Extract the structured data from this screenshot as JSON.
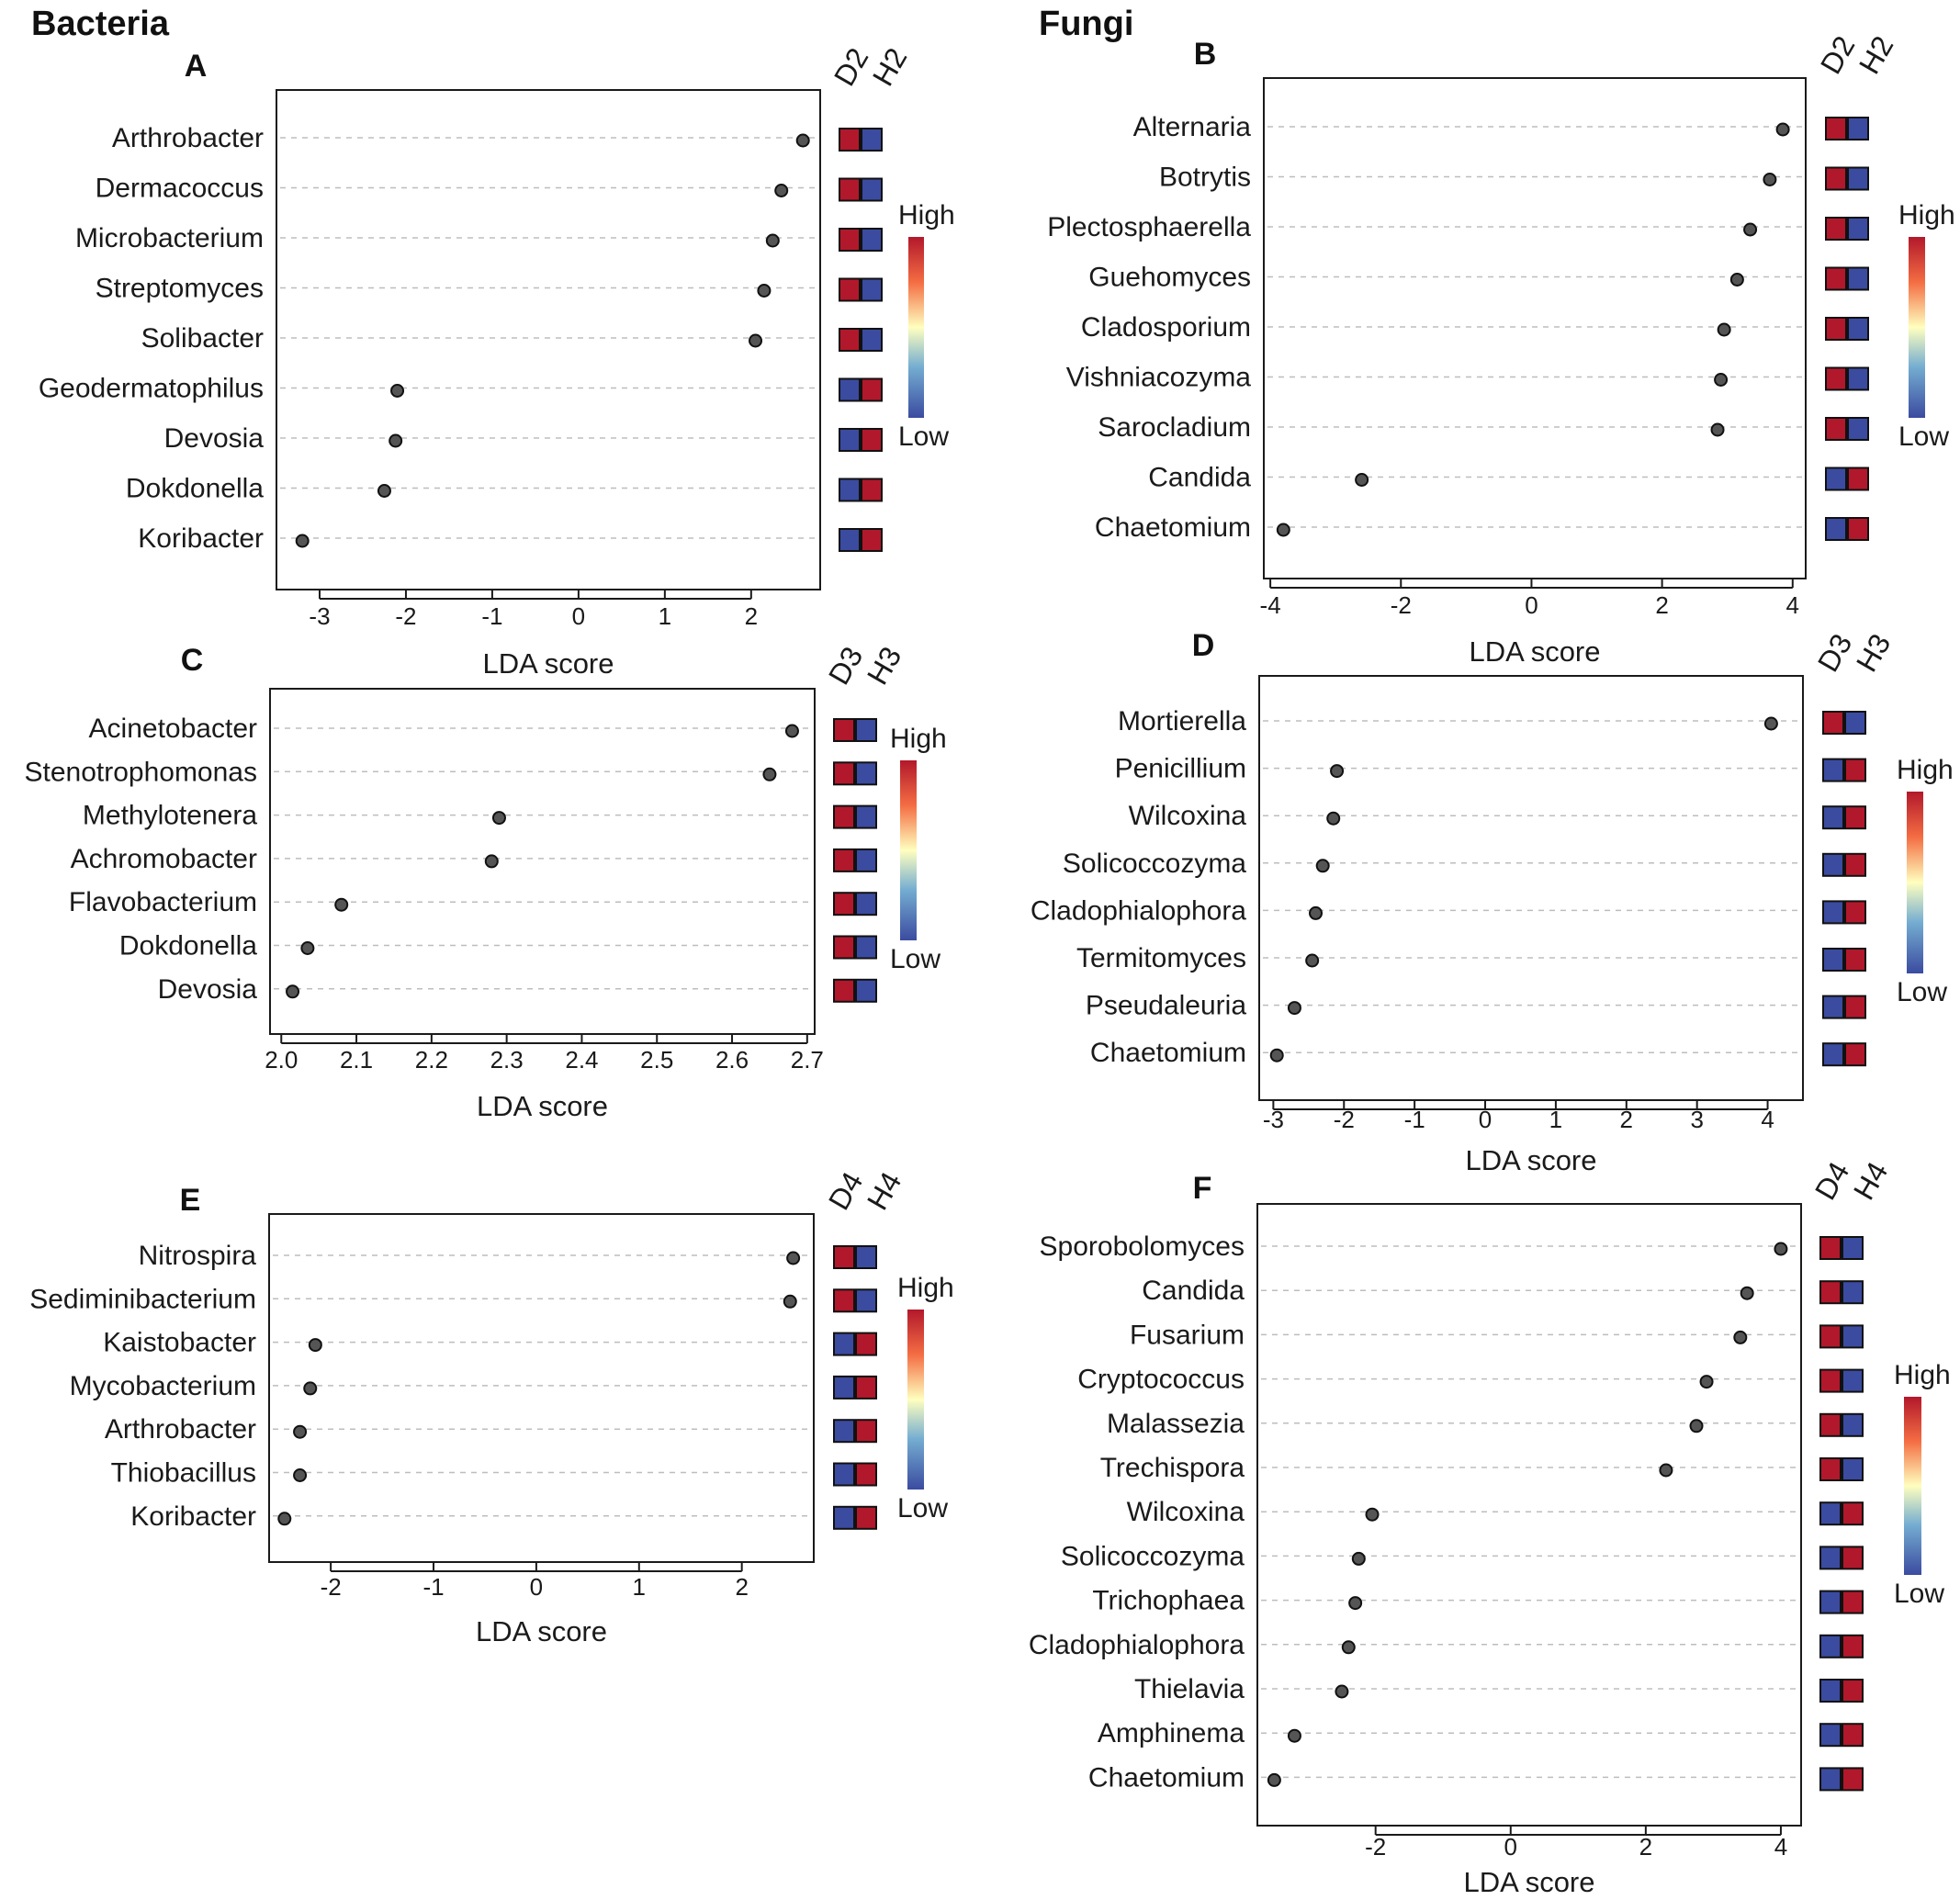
{
  "titles": {
    "left": "Bacteria",
    "right": "Fungi"
  },
  "colors": {
    "high": "#b2182b",
    "low": "#3b4ba0",
    "dot": "#555555",
    "gradient": [
      "#3b4ba0",
      "#74add1",
      "#ffffbf",
      "#f46d43",
      "#b2182b"
    ]
  },
  "chart_data": [
    {
      "id": "A",
      "type": "scatter",
      "title": "A",
      "xlabel": "LDA score",
      "xlim": [
        -3.5,
        2.8
      ],
      "xticks": [
        "-3",
        "-2",
        "-1",
        "0",
        "1",
        "2"
      ],
      "groups": [
        "D2",
        "H2"
      ],
      "legend_high": "High",
      "legend_low": "Low",
      "taxa": [
        {
          "name": "Arthrobacter",
          "value": 2.6
        },
        {
          "name": "Dermacoccus",
          "value": 2.35
        },
        {
          "name": "Microbacterium",
          "value": 2.25
        },
        {
          "name": "Streptomyces",
          "value": 2.15
        },
        {
          "name": "Solibacter",
          "value": 2.05
        },
        {
          "name": "Geodermatophilus",
          "value": -2.1
        },
        {
          "name": "Devosia",
          "value": -2.12
        },
        {
          "name": "Dokdonella",
          "value": -2.25
        },
        {
          "name": "Koribacter",
          "value": -3.2
        }
      ]
    },
    {
      "id": "B",
      "type": "scatter",
      "title": "B",
      "xlabel": "LDA score",
      "xlim": [
        -4.1,
        4.2
      ],
      "xticks": [
        "-4",
        "-2",
        "0",
        "2",
        "4"
      ],
      "groups": [
        "D2",
        "H2"
      ],
      "legend_high": "High",
      "legend_low": "Low",
      "taxa": [
        {
          "name": "Alternaria",
          "value": 3.85
        },
        {
          "name": "Botrytis",
          "value": 3.65
        },
        {
          "name": "Plectosphaerella",
          "value": 3.35
        },
        {
          "name": "Guehomyces",
          "value": 3.15
        },
        {
          "name": "Cladosporium",
          "value": 2.95
        },
        {
          "name": "Vishniacozyma",
          "value": 2.9
        },
        {
          "name": "Sarocladium",
          "value": 2.85
        },
        {
          "name": "Candida",
          "value": -2.6
        },
        {
          "name": "Chaetomium",
          "value": -3.8
        }
      ]
    },
    {
      "id": "C",
      "type": "scatter",
      "title": "C",
      "xlabel": "LDA score",
      "xlim": [
        1.985,
        2.71
      ],
      "xticks": [
        "2.0",
        "2.1",
        "2.2",
        "2.3",
        "2.4",
        "2.5",
        "2.6",
        "2.7"
      ],
      "groups": [
        "D3",
        "H3"
      ],
      "legend_high": "High",
      "legend_low": "Low",
      "taxa": [
        {
          "name": "Acinetobacter",
          "value": 2.68
        },
        {
          "name": "Stenotrophomonas",
          "value": 2.65
        },
        {
          "name": "Methylotenera",
          "value": 2.29
        },
        {
          "name": "Achromobacter",
          "value": 2.28
        },
        {
          "name": "Flavobacterium",
          "value": 2.08
        },
        {
          "name": "Dokdonella",
          "value": 2.035
        },
        {
          "name": "Devosia",
          "value": 2.015
        }
      ]
    },
    {
      "id": "D",
      "type": "scatter",
      "title": "D",
      "xlabel": "LDA score",
      "xlim": [
        -3.2,
        4.5
      ],
      "xticks": [
        "-3",
        "-2",
        "-1",
        "0",
        "1",
        "2",
        "3",
        "4"
      ],
      "groups": [
        "D3",
        "H3"
      ],
      "legend_high": "High",
      "legend_low": "Low",
      "taxa": [
        {
          "name": "Mortierella",
          "value": 4.05
        },
        {
          "name": "Penicillium",
          "value": -2.1
        },
        {
          "name": "Wilcoxina",
          "value": -2.15
        },
        {
          "name": "Solicoccozyma",
          "value": -2.3
        },
        {
          "name": "Cladophialophora",
          "value": -2.4
        },
        {
          "name": "Termitomyces",
          "value": -2.45
        },
        {
          "name": "Pseudaleuria",
          "value": -2.7
        },
        {
          "name": "Chaetomium",
          "value": -2.95
        }
      ]
    },
    {
      "id": "E",
      "type": "scatter",
      "title": "E",
      "xlabel": "LDA score",
      "xlim": [
        -2.6,
        2.7
      ],
      "xticks": [
        "-2",
        "-1",
        "0",
        "1",
        "2"
      ],
      "groups": [
        "D4",
        "H4"
      ],
      "legend_high": "High",
      "legend_low": "Low",
      "taxa": [
        {
          "name": "Nitrospira",
          "value": 2.5
        },
        {
          "name": "Sediminibacterium",
          "value": 2.47
        },
        {
          "name": "Kaistobacter",
          "value": -2.15
        },
        {
          "name": "Mycobacterium",
          "value": -2.2
        },
        {
          "name": "Arthrobacter",
          "value": -2.3
        },
        {
          "name": "Thiobacillus",
          "value": -2.3
        },
        {
          "name": "Koribacter",
          "value": -2.45
        }
      ]
    },
    {
      "id": "F",
      "type": "scatter",
      "title": "F",
      "xlabel": "LDA score",
      "xlim": [
        -3.75,
        4.3
      ],
      "xticks": [
        "-2",
        "0",
        "2",
        "4"
      ],
      "groups": [
        "D4",
        "H4"
      ],
      "legend_high": "High",
      "legend_low": "Low",
      "taxa": [
        {
          "name": "Sporobolomyces",
          "value": 4.0
        },
        {
          "name": "Candida",
          "value": 3.5
        },
        {
          "name": "Fusarium",
          "value": 3.4
        },
        {
          "name": "Cryptococcus",
          "value": 2.9
        },
        {
          "name": "Malassezia",
          "value": 2.75
        },
        {
          "name": "Trechispora",
          "value": 2.3
        },
        {
          "name": "Wilcoxina",
          "value": -2.05
        },
        {
          "name": "Solicoccozyma",
          "value": -2.25
        },
        {
          "name": "Trichophaea",
          "value": -2.3
        },
        {
          "name": "Cladophialophora",
          "value": -2.4
        },
        {
          "name": "Thielavia",
          "value": -2.5
        },
        {
          "name": "Amphinema",
          "value": -3.2
        },
        {
          "name": "Chaetomium",
          "value": -3.5
        }
      ]
    }
  ]
}
